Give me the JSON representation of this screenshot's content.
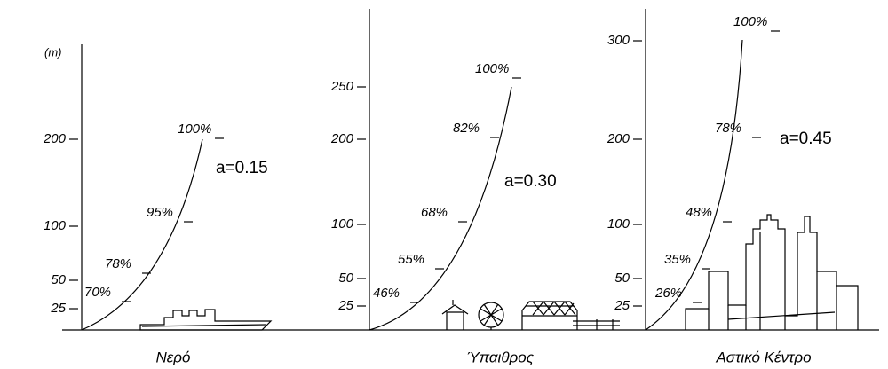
{
  "unit": "(m)",
  "panels": [
    {
      "label": "Νερό",
      "exponent": "a=0.15",
      "yticks": [
        "25",
        "50",
        "100",
        "200"
      ],
      "profile_labels": [
        "70%",
        "78%",
        "95%",
        "100%"
      ]
    },
    {
      "label": "Ύπαιθρος",
      "exponent": "a=0.30",
      "yticks": [
        "25",
        "50",
        "100",
        "200",
        "250"
      ],
      "profile_labels": [
        "46%",
        "55%",
        "68%",
        "82%",
        "100%"
      ]
    },
    {
      "label": "Αστικό Κέντρο",
      "exponent": "a=0.45",
      "yticks": [
        "25",
        "50",
        "100",
        "200",
        "300"
      ],
      "profile_labels": [
        "26%",
        "35%",
        "48%",
        "78%",
        "100%"
      ]
    }
  ]
}
